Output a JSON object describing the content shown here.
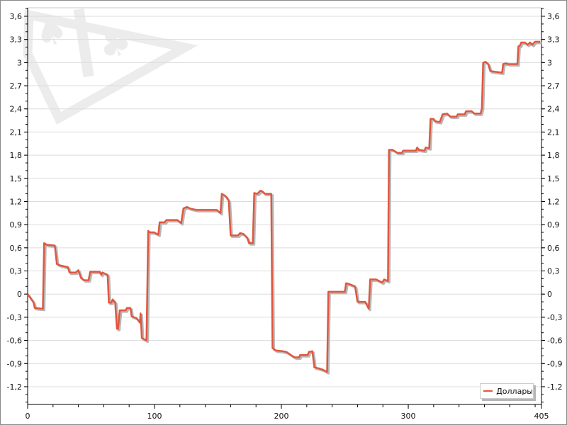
{
  "chart_data": {
    "type": "line",
    "title": "",
    "xlabel": "",
    "ylabel": "",
    "xlim": [
      0,
      405
    ],
    "ylim": [
      -1.43,
      3.71
    ],
    "x_ticks": [
      0,
      100,
      200,
      300,
      405
    ],
    "x_tick_labels": [
      "0",
      "100",
      "200",
      "300",
      "405"
    ],
    "y_ticks": [
      -1.2,
      -0.9,
      -0.6,
      -0.3,
      0,
      0.3,
      0.6,
      0.9,
      1.2,
      1.5,
      1.8,
      2.1,
      2.4,
      2.7,
      3,
      3.3,
      3.6
    ],
    "y_tick_labels": [
      "-1,2",
      "-0,9",
      "-0,6",
      "-0,3",
      "0",
      "0,3",
      "0,6",
      "0,9",
      "1,2",
      "1,5",
      "1,8",
      "2,1",
      "2,4",
      "2,7",
      "3",
      "3,3",
      "3,6"
    ],
    "grid": "horizontal",
    "legend_position": "bottom-right",
    "series": [
      {
        "name": "Доллары",
        "color": "#e0573f",
        "points": [
          [
            0,
            0
          ],
          [
            4.7,
            -0.11
          ],
          [
            5.6,
            -0.18
          ],
          [
            12,
            -0.19
          ],
          [
            13,
            0.66
          ],
          [
            15,
            0.64
          ],
          [
            21.4,
            0.63
          ],
          [
            23,
            0.39
          ],
          [
            26,
            0.37
          ],
          [
            31.7,
            0.35
          ],
          [
            33,
            0.28
          ],
          [
            38,
            0.28
          ],
          [
            40,
            0.31
          ],
          [
            42,
            0.21
          ],
          [
            44.7,
            0.18
          ],
          [
            48,
            0.18
          ],
          [
            49.3,
            0.29
          ],
          [
            56.8,
            0.29
          ],
          [
            58,
            0.25
          ],
          [
            59,
            0.28
          ],
          [
            63,
            0.25
          ],
          [
            64,
            -0.11
          ],
          [
            66,
            -0.11
          ],
          [
            67,
            -0.07
          ],
          [
            69,
            -0.11
          ],
          [
            70.4,
            -0.45
          ],
          [
            71.3,
            -0.45
          ],
          [
            72.6,
            -0.21
          ],
          [
            77.3,
            -0.21
          ],
          [
            78.2,
            -0.18
          ],
          [
            81,
            -0.18
          ],
          [
            82,
            -0.29
          ],
          [
            85.7,
            -0.31
          ],
          [
            88.5,
            -0.37
          ],
          [
            89,
            -0.25
          ],
          [
            90,
            -0.57
          ],
          [
            93.7,
            -0.6
          ],
          [
            95,
            0.82
          ],
          [
            96.3,
            0.8
          ],
          [
            99.6,
            0.8
          ],
          [
            103,
            0.77
          ],
          [
            104,
            0.93
          ],
          [
            108,
            0.93
          ],
          [
            109.3,
            0.96
          ],
          [
            118,
            0.96
          ],
          [
            121,
            0.92
          ],
          [
            122.8,
            1.11
          ],
          [
            125.5,
            1.13
          ],
          [
            128,
            1.11
          ],
          [
            133,
            1.09
          ],
          [
            149,
            1.09
          ],
          [
            152,
            1.05
          ],
          [
            153,
            1.3
          ],
          [
            156,
            1.27
          ],
          [
            158.5,
            1.21
          ],
          [
            160,
            0.76
          ],
          [
            165.7,
            0.76
          ],
          [
            167.5,
            0.79
          ],
          [
            170,
            0.78
          ],
          [
            173,
            0.73
          ],
          [
            174.5,
            0.66
          ],
          [
            177.5,
            0.66
          ],
          [
            178.6,
            1.31
          ],
          [
            181,
            1.3
          ],
          [
            183.5,
            1.34
          ],
          [
            185,
            1.33
          ],
          [
            187,
            1.3
          ],
          [
            192,
            1.3
          ],
          [
            193,
            -0.7
          ],
          [
            195.5,
            -0.73
          ],
          [
            201,
            -0.74
          ],
          [
            204,
            -0.75
          ],
          [
            207.6,
            -0.79
          ],
          [
            210.5,
            -0.82
          ],
          [
            214,
            -0.82
          ],
          [
            214.7,
            -0.79
          ],
          [
            220.7,
            -0.79
          ],
          [
            221.6,
            -0.75
          ],
          [
            224.4,
            -0.74
          ],
          [
            226,
            -0.95
          ],
          [
            229,
            -0.96
          ],
          [
            232.8,
            -0.98
          ],
          [
            236,
            -1.01
          ],
          [
            237,
            0.03
          ],
          [
            250,
            0.03
          ],
          [
            251,
            0.14
          ],
          [
            253.5,
            0.13
          ],
          [
            258,
            0.1
          ],
          [
            260,
            -0.1
          ],
          [
            266,
            -0.1
          ],
          [
            268.8,
            -0.19
          ],
          [
            270,
            0.19
          ],
          [
            274.7,
            0.19
          ],
          [
            279.5,
            0.15
          ],
          [
            281,
            0.19
          ],
          [
            284,
            0.17
          ],
          [
            284.8,
            1.87
          ],
          [
            287.7,
            1.87
          ],
          [
            291.5,
            1.83
          ],
          [
            295,
            1.83
          ],
          [
            296,
            1.86
          ],
          [
            306,
            1.86
          ],
          [
            307,
            1.9
          ],
          [
            308,
            1.87
          ],
          [
            312.8,
            1.86
          ],
          [
            313.8,
            1.9
          ],
          [
            316.5,
            1.89
          ],
          [
            317.5,
            2.27
          ],
          [
            320,
            2.27
          ],
          [
            321,
            2.24
          ],
          [
            324.9,
            2.23
          ],
          [
            327,
            2.33
          ],
          [
            330.6,
            2.34
          ],
          [
            333,
            2.3
          ],
          [
            338,
            2.3
          ],
          [
            339,
            2.33
          ],
          [
            344.5,
            2.33
          ],
          [
            345.5,
            2.37
          ],
          [
            350,
            2.37
          ],
          [
            352,
            2.34
          ],
          [
            357,
            2.34
          ],
          [
            358,
            2.41
          ],
          [
            359,
            3.0
          ],
          [
            361,
            3.01
          ],
          [
            363,
            2.98
          ],
          [
            364.6,
            2.89
          ],
          [
            368.6,
            2.88
          ],
          [
            374,
            2.87
          ],
          [
            374.8,
            2.98
          ],
          [
            377,
            2.99
          ],
          [
            379,
            2.98
          ],
          [
            386,
            2.98
          ],
          [
            386.8,
            3.21
          ],
          [
            388,
            3.22
          ],
          [
            389,
            3.26
          ],
          [
            392,
            3.26
          ],
          [
            394,
            3.23
          ],
          [
            396,
            3.26
          ],
          [
            397.6,
            3.23
          ],
          [
            400,
            3.27
          ],
          [
            404,
            3.27
          ]
        ]
      }
    ]
  }
}
